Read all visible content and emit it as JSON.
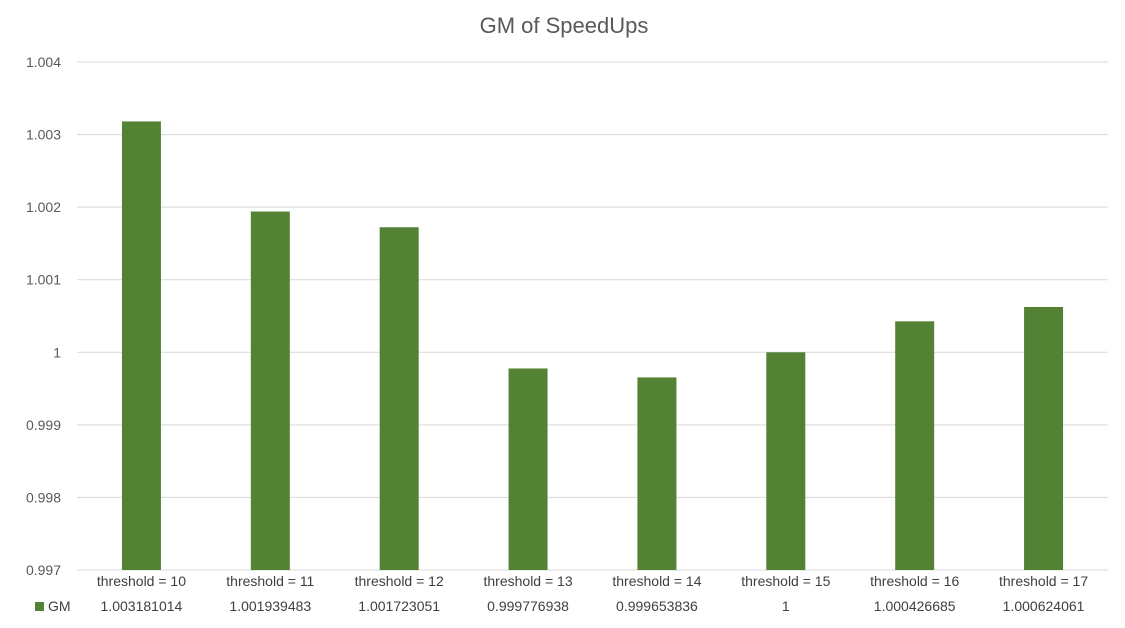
{
  "chart_data": {
    "type": "bar",
    "title": "GM of SpeedUps",
    "xlabel": "",
    "ylabel": "",
    "categories": [
      "threshold = 10",
      "threshold = 11",
      "threshold = 12",
      "threshold = 13",
      "threshold = 14",
      "threshold = 15",
      "threshold = 16",
      "threshold = 17"
    ],
    "series": [
      {
        "name": "GM",
        "values": [
          1.003181014,
          1.001939483,
          1.001723051,
          0.999776938,
          0.999653836,
          1,
          1.000426685,
          1.000624061
        ],
        "value_labels": [
          "1.003181014",
          "1.001939483",
          "1.001723051",
          "0.999776938",
          "0.999653836",
          "1",
          "1.000426685",
          "1.000624061"
        ],
        "color": "#548235"
      }
    ],
    "ylim": [
      0.997,
      1.004
    ],
    "yticks": [
      0.997,
      0.998,
      0.999,
      1,
      1.001,
      1.002,
      1.003,
      1.004
    ],
    "ytick_labels": [
      "0.997",
      "0.998",
      "0.999",
      "1",
      "1.001",
      "1.002",
      "1.003",
      "1.004"
    ],
    "grid": true,
    "legend": "data table",
    "colors": {
      "bar": "#548235",
      "grid": "#d9d9d9",
      "text": "#595959"
    }
  }
}
